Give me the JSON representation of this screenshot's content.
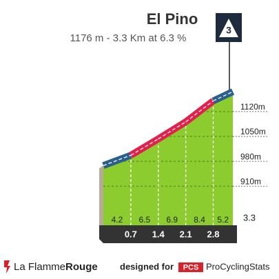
{
  "chart_data": {
    "type": "climb-profile",
    "title": "El Pino",
    "subtitle": "1176 m - 3.3 Km at 6.3 %",
    "category": "3",
    "x": [
      0,
      0.7,
      1.4,
      2.1,
      2.8,
      3.3
    ],
    "elevations": [
      968,
      997,
      1043,
      1091,
      1150,
      1176
    ],
    "gradients": [
      4.2,
      6.5,
      6.9,
      8.4,
      5.2
    ],
    "road_colors": [
      "#2b5f8e",
      "#e3204b",
      "#e3204b",
      "#e3204b",
      "#2b5f8e"
    ],
    "fill_color": "#8ccc2e",
    "xlim": [
      0,
      3.3
    ],
    "xticks": [
      0.7,
      1.4,
      2.1,
      2.8,
      3.3
    ],
    "ylim": [
      800,
      1180
    ],
    "yticks": [
      {
        "value": 910,
        "label": "910m"
      },
      {
        "value": 980,
        "label": "980m"
      },
      {
        "value": 1050,
        "label": "1050m"
      },
      {
        "value": 1120,
        "label": "1120m"
      }
    ],
    "grid": true
  },
  "footer": {
    "brand": "La Flamme",
    "brand_bold": "Rouge",
    "designed": "designed for",
    "pcs": "PCS",
    "site": "ProCyclingStats"
  }
}
